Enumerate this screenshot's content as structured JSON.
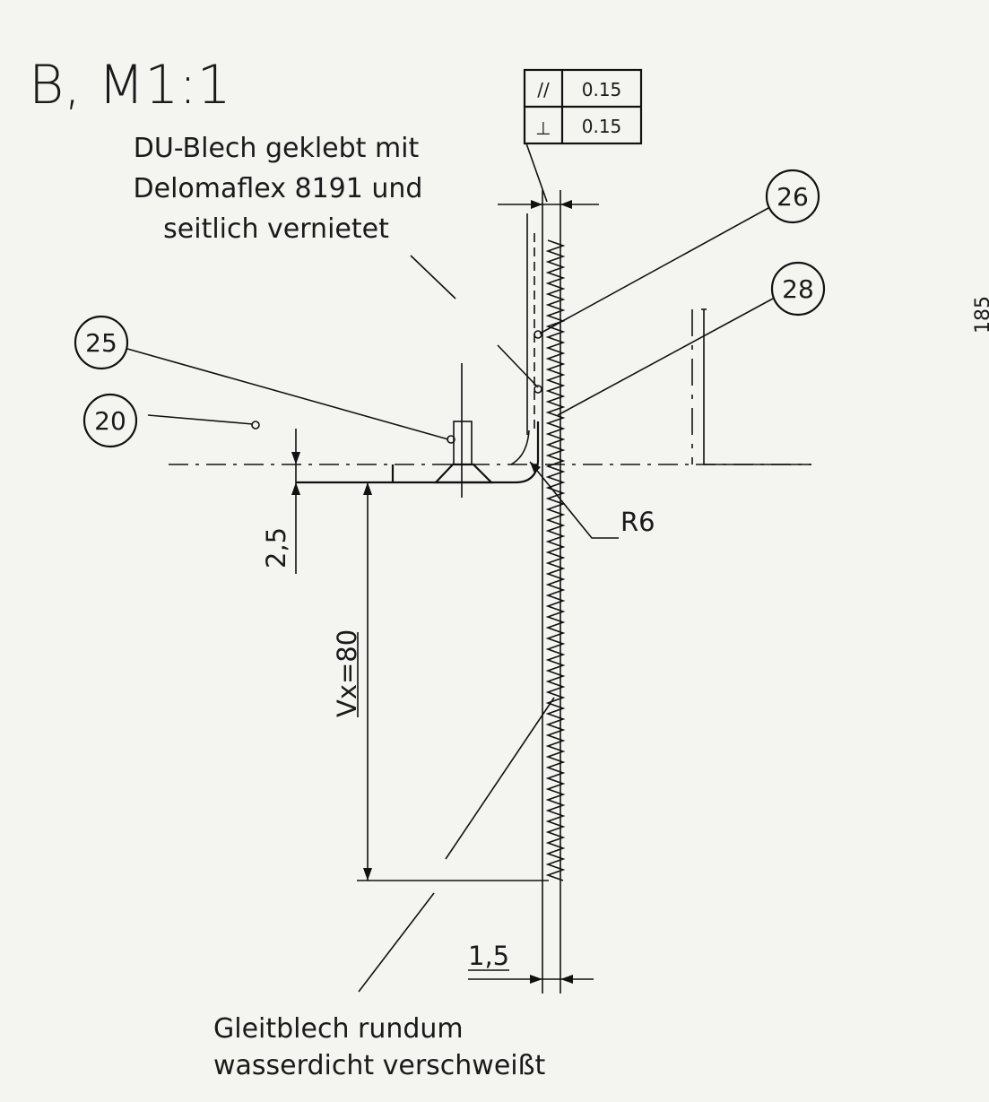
{
  "title": "B, M1:1",
  "note_top": {
    "line1": "DU-Blech geklebt mit",
    "line2": "Delomaflex 8191 und",
    "line3": "seitlich vernietet"
  },
  "note_bottom": {
    "line1": "Gleitblech rundum",
    "line2": "wasserdicht verschweißt"
  },
  "tolerance_frame": [
    {
      "symbol": "//",
      "value": "0.15"
    },
    {
      "symbol": "⊥",
      "value": "0.15"
    }
  ],
  "item_balloons": [
    "26",
    "28",
    "25",
    "20"
  ],
  "dimensions": {
    "radius": "R6",
    "thickness_2_5": "2,5",
    "vx": "Vx=80",
    "thickness_1_5": "1,5"
  },
  "edge_reference": "185"
}
